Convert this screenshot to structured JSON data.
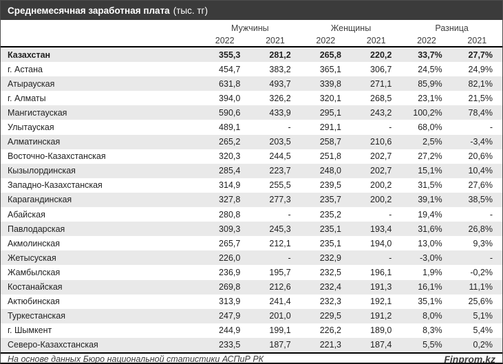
{
  "title": {
    "main": "Среднемесячная заработная плата",
    "unit": "(тыс. тг)"
  },
  "header": {
    "groups": [
      "Мужчины",
      "Женщины",
      "Разница"
    ],
    "years": [
      "2022",
      "2021",
      "2022",
      "2021",
      "2022",
      "2021"
    ]
  },
  "table": {
    "rows": [
      {
        "name": "Казахстан",
        "bold": true,
        "values": [
          "355,3",
          "281,2",
          "265,8",
          "220,2",
          "33,7%",
          "27,7%"
        ]
      },
      {
        "name": "г. Астана",
        "bold": false,
        "values": [
          "454,7",
          "383,2",
          "365,1",
          "306,7",
          "24,5%",
          "24,9%"
        ]
      },
      {
        "name": "Атырауская",
        "bold": false,
        "values": [
          "631,8",
          "493,7",
          "339,8",
          "271,1",
          "85,9%",
          "82,1%"
        ]
      },
      {
        "name": "г. Алматы",
        "bold": false,
        "values": [
          "394,0",
          "326,2",
          "320,1",
          "268,5",
          "23,1%",
          "21,5%"
        ]
      },
      {
        "name": "Мангистауская",
        "bold": false,
        "values": [
          "590,6",
          "433,9",
          "295,1",
          "243,2",
          "100,2%",
          "78,4%"
        ]
      },
      {
        "name": "Улытауская",
        "bold": false,
        "values": [
          "489,1",
          "-",
          "291,1",
          "-",
          "68,0%",
          "-"
        ]
      },
      {
        "name": "Алматинская",
        "bold": false,
        "values": [
          "265,2",
          "203,5",
          "258,7",
          "210,6",
          "2,5%",
          "-3,4%"
        ]
      },
      {
        "name": "Восточно-Казахстанская",
        "bold": false,
        "values": [
          "320,3",
          "244,5",
          "251,8",
          "202,7",
          "27,2%",
          "20,6%"
        ]
      },
      {
        "name": "Кызылординская",
        "bold": false,
        "values": [
          "285,4",
          "223,7",
          "248,0",
          "202,7",
          "15,1%",
          "10,4%"
        ]
      },
      {
        "name": "Западно-Казахстанская",
        "bold": false,
        "values": [
          "314,9",
          "255,5",
          "239,5",
          "200,2",
          "31,5%",
          "27,6%"
        ]
      },
      {
        "name": "Карагандинская",
        "bold": false,
        "values": [
          "327,8",
          "277,3",
          "235,7",
          "200,2",
          "39,1%",
          "38,5%"
        ]
      },
      {
        "name": "Абайская",
        "bold": false,
        "values": [
          "280,8",
          "-",
          "235,2",
          "-",
          "19,4%",
          "-"
        ]
      },
      {
        "name": "Павлодарская",
        "bold": false,
        "values": [
          "309,3",
          "245,3",
          "235,1",
          "193,4",
          "31,6%",
          "26,8%"
        ]
      },
      {
        "name": "Акмолинская",
        "bold": false,
        "values": [
          "265,7",
          "212,1",
          "235,1",
          "194,0",
          "13,0%",
          "9,3%"
        ]
      },
      {
        "name": "Жетысуская",
        "bold": false,
        "values": [
          "226,0",
          "-",
          "232,9",
          "-",
          "-3,0%",
          "-"
        ]
      },
      {
        "name": "Жамбылская",
        "bold": false,
        "values": [
          "236,9",
          "195,7",
          "232,5",
          "196,1",
          "1,9%",
          "-0,2%"
        ]
      },
      {
        "name": "Костанайская",
        "bold": false,
        "values": [
          "269,8",
          "212,6",
          "232,4",
          "191,3",
          "16,1%",
          "11,1%"
        ]
      },
      {
        "name": "Актюбинская",
        "bold": false,
        "values": [
          "313,9",
          "241,4",
          "232,3",
          "192,1",
          "35,1%",
          "25,6%"
        ]
      },
      {
        "name": "Туркестанская",
        "bold": false,
        "values": [
          "247,9",
          "201,0",
          "229,5",
          "191,2",
          "8,0%",
          "5,1%"
        ]
      },
      {
        "name": "г. Шымкент",
        "bold": false,
        "values": [
          "244,9",
          "199,1",
          "226,2",
          "189,0",
          "8,3%",
          "5,4%"
        ]
      },
      {
        "name": "Северо-Казахстанская",
        "bold": false,
        "values": [
          "233,5",
          "187,7",
          "221,3",
          "187,4",
          "5,5%",
          "0,2%"
        ]
      }
    ]
  },
  "footer": {
    "source": "На основе данных Бюро национальной статистики АСПиР РК",
    "brand": "Finprom.kz"
  },
  "colors": {
    "title_bar": "#3b3b3b",
    "stripe": "#e9e9e9",
    "rule": "#000000",
    "text": "#1f1f1f"
  }
}
